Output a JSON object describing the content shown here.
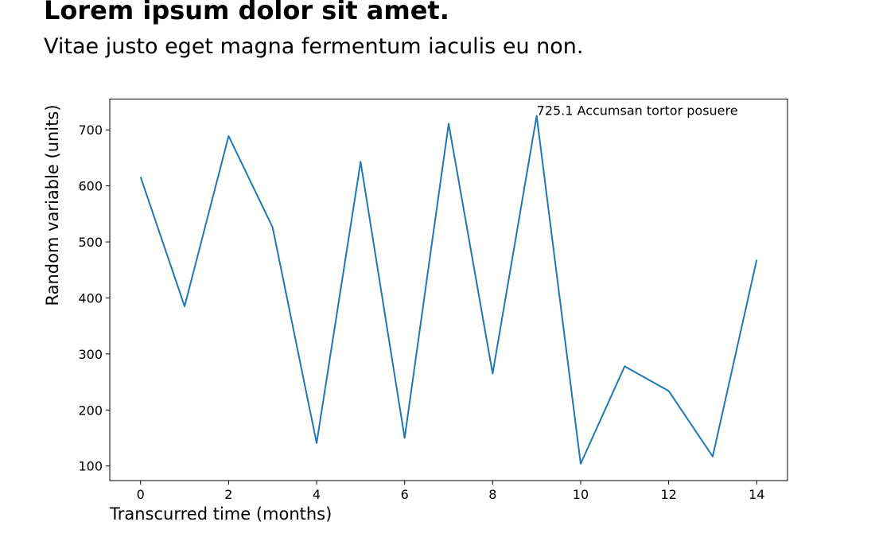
{
  "header": {
    "title": "Lorem ipsum dolor sit amet.",
    "subtitle": "Vitae justo eget magna fermentum iaculis eu non."
  },
  "chart_data": {
    "type": "line",
    "title": "Lorem ipsum dolor sit amet.",
    "subtitle": "Vitae justo eget magna fermentum iaculis eu non.",
    "xlabel": "Transcurred time (months)",
    "ylabel": "Random variable (units)",
    "x": [
      0,
      1,
      2,
      3,
      4,
      5,
      6,
      7,
      8,
      9,
      10,
      11,
      12,
      13,
      14
    ],
    "series": [
      {
        "values": [
          616,
          385,
          689,
          526,
          141,
          643,
          150,
          711,
          265,
          725.1,
          104,
          278,
          234,
          117,
          468
        ],
        "color": "#1f77b4"
      }
    ],
    "xlim": [
      -0.7,
      14.7
    ],
    "ylim": [
      74,
      755
    ],
    "xticks": [
      0,
      2,
      4,
      6,
      8,
      10,
      12,
      14
    ],
    "yticks": [
      100,
      200,
      300,
      400,
      500,
      600,
      700
    ],
    "annotation": {
      "x": 9,
      "y": 725.1,
      "text": "725.1 Accumsan tortor posuere"
    },
    "grid": false,
    "legend": "none"
  }
}
